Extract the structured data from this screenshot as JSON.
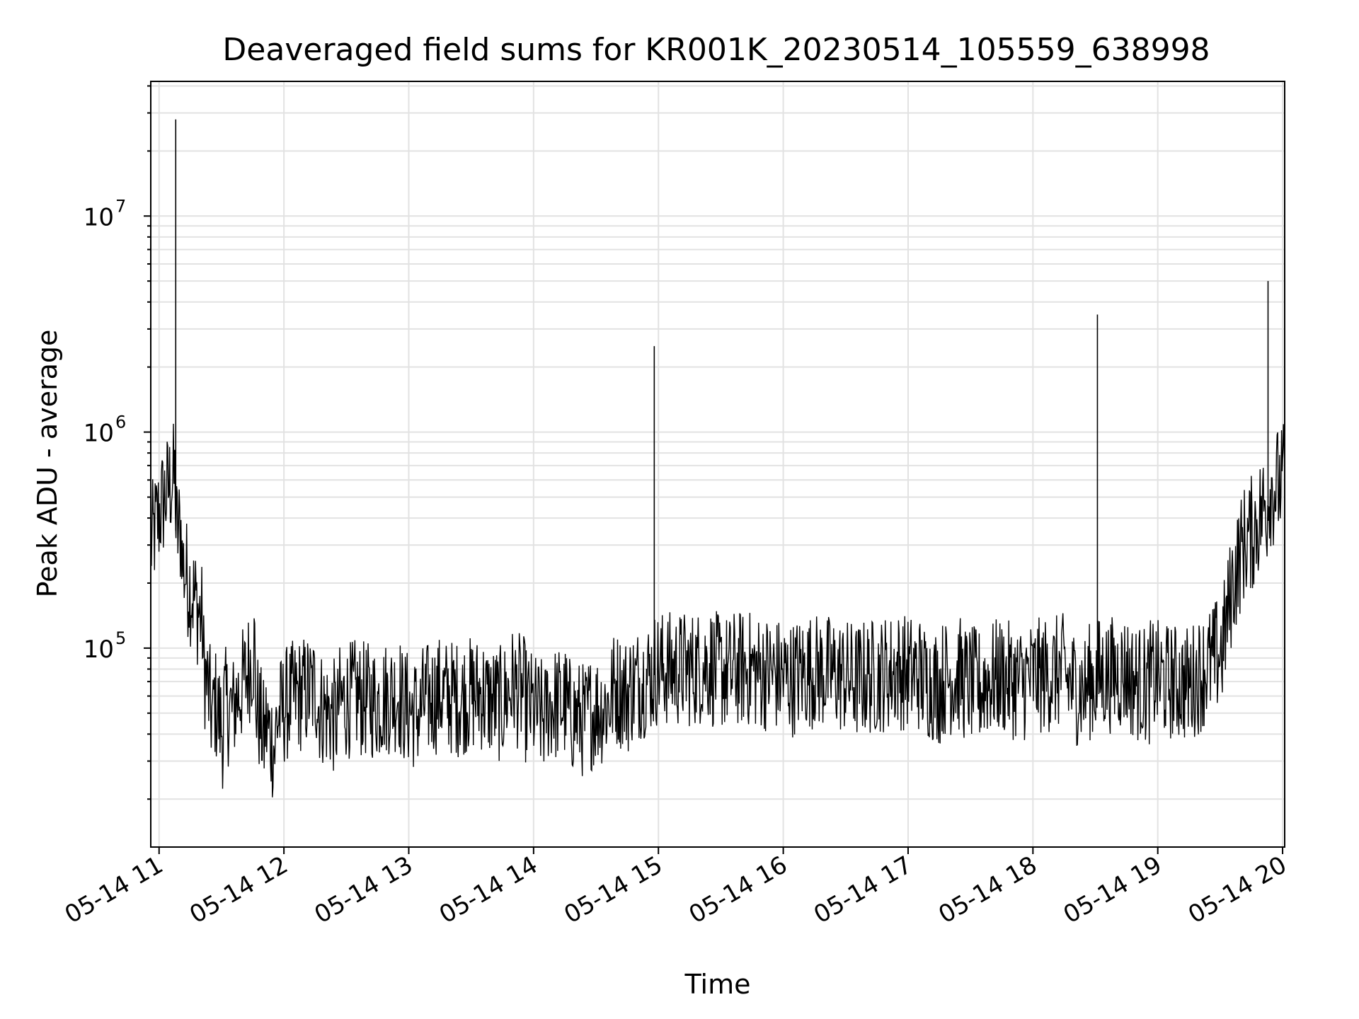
{
  "chart_data": {
    "type": "line",
    "title": "Deaveraged field sums for KR001K_20230514_105559_638998",
    "xlabel": "Time",
    "ylabel": "Peak ADU - average",
    "yscale": "log",
    "grid": true,
    "legend": "none",
    "line_color": "#000000",
    "xlim": [
      "2023-05-14 10:56",
      "2023-05-14 20:01"
    ],
    "ylim": [
      12000,
      42000000
    ],
    "x_ticks": [
      "05-14 11",
      "05-14 12",
      "05-14 13",
      "05-14 14",
      "05-14 15",
      "05-14 16",
      "05-14 17",
      "05-14 18",
      "05-14 19",
      "05-14 20"
    ],
    "y_ticks": [
      {
        "base": "10",
        "exp": "5",
        "value": 100000
      },
      {
        "base": "10",
        "exp": "6",
        "value": 1000000
      },
      {
        "base": "10",
        "exp": "7",
        "value": 10000000
      }
    ],
    "series": [
      {
        "x": [
          "2023-05-14 10:56",
          "2023-05-14 11:01",
          "2023-05-14 11:06",
          "2023-05-14 11:08",
          "2023-05-14 11:11",
          "2023-05-14 11:16",
          "2023-05-14 11:21",
          "2023-05-14 11:26",
          "2023-05-14 11:31",
          "2023-05-14 11:36",
          "2023-05-14 11:41",
          "2023-05-14 11:46",
          "2023-05-14 11:51",
          "2023-05-14 11:56",
          "2023-05-14 12:01",
          "2023-05-14 12:06",
          "2023-05-14 12:16",
          "2023-05-14 12:26",
          "2023-05-14 12:36",
          "2023-05-14 12:46",
          "2023-05-14 12:56",
          "2023-05-14 13:06",
          "2023-05-14 13:16",
          "2023-05-14 13:26",
          "2023-05-14 13:36",
          "2023-05-14 13:46",
          "2023-05-14 13:51",
          "2023-05-14 13:56",
          "2023-05-14 14:06",
          "2023-05-14 14:16",
          "2023-05-14 14:26",
          "2023-05-14 14:36",
          "2023-05-14 14:40",
          "2023-05-14 14:46",
          "2023-05-14 14:56",
          "2023-05-14 14:58",
          "2023-05-14 15:06",
          "2023-05-14 15:16",
          "2023-05-14 15:26",
          "2023-05-14 15:36",
          "2023-05-14 15:40",
          "2023-05-14 15:46",
          "2023-05-14 15:56",
          "2023-05-14 16:06",
          "2023-05-14 16:16",
          "2023-05-14 16:26",
          "2023-05-14 16:33",
          "2023-05-14 16:36",
          "2023-05-14 16:46",
          "2023-05-14 16:56",
          "2023-05-14 17:06",
          "2023-05-14 17:16",
          "2023-05-14 17:26",
          "2023-05-14 17:36",
          "2023-05-14 17:46",
          "2023-05-14 17:56",
          "2023-05-14 18:06",
          "2023-05-14 18:16",
          "2023-05-14 18:26",
          "2023-05-14 18:31",
          "2023-05-14 18:36",
          "2023-05-14 18:46",
          "2023-05-14 18:56",
          "2023-05-14 19:00",
          "2023-05-14 19:06",
          "2023-05-14 19:16",
          "2023-05-14 19:26",
          "2023-05-14 19:31",
          "2023-05-14 19:36",
          "2023-05-14 19:41",
          "2023-05-14 19:46",
          "2023-05-14 19:51",
          "2023-05-14 19:53",
          "2023-05-14 19:56",
          "2023-05-14 20:01"
        ],
        "y": [
          300000,
          450000,
          600000,
          28000000,
          350000,
          250000,
          180000,
          90000,
          60000,
          55000,
          70000,
          100000,
          60000,
          45000,
          55000,
          60000,
          65000,
          55000,
          60000,
          58000,
          62000,
          55000,
          62000,
          60000,
          62000,
          58000,
          70000,
          65000,
          55000,
          55000,
          50000,
          55000,
          70000,
          65000,
          75000,
          2500000,
          80000,
          80000,
          85000,
          80000,
          80000,
          80000,
          78000,
          75000,
          80000,
          78000,
          75000,
          72000,
          75000,
          80000,
          78000,
          72000,
          75000,
          70000,
          75000,
          72000,
          75000,
          78000,
          70000,
          3500000,
          75000,
          78000,
          72000,
          75000,
          72000,
          70000,
          85000,
          100000,
          200000,
          300000,
          350000,
          450000,
          5000000,
          550000,
          600000
        ]
      }
    ]
  }
}
